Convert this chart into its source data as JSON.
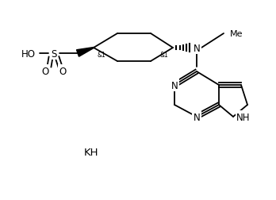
{
  "background": "#ffffff",
  "line_color": "#000000",
  "lw": 1.3,
  "fs": 8.5,
  "kh_label": "KH",
  "xlim": [
    0,
    348
  ],
  "ylim": [
    0,
    253
  ]
}
